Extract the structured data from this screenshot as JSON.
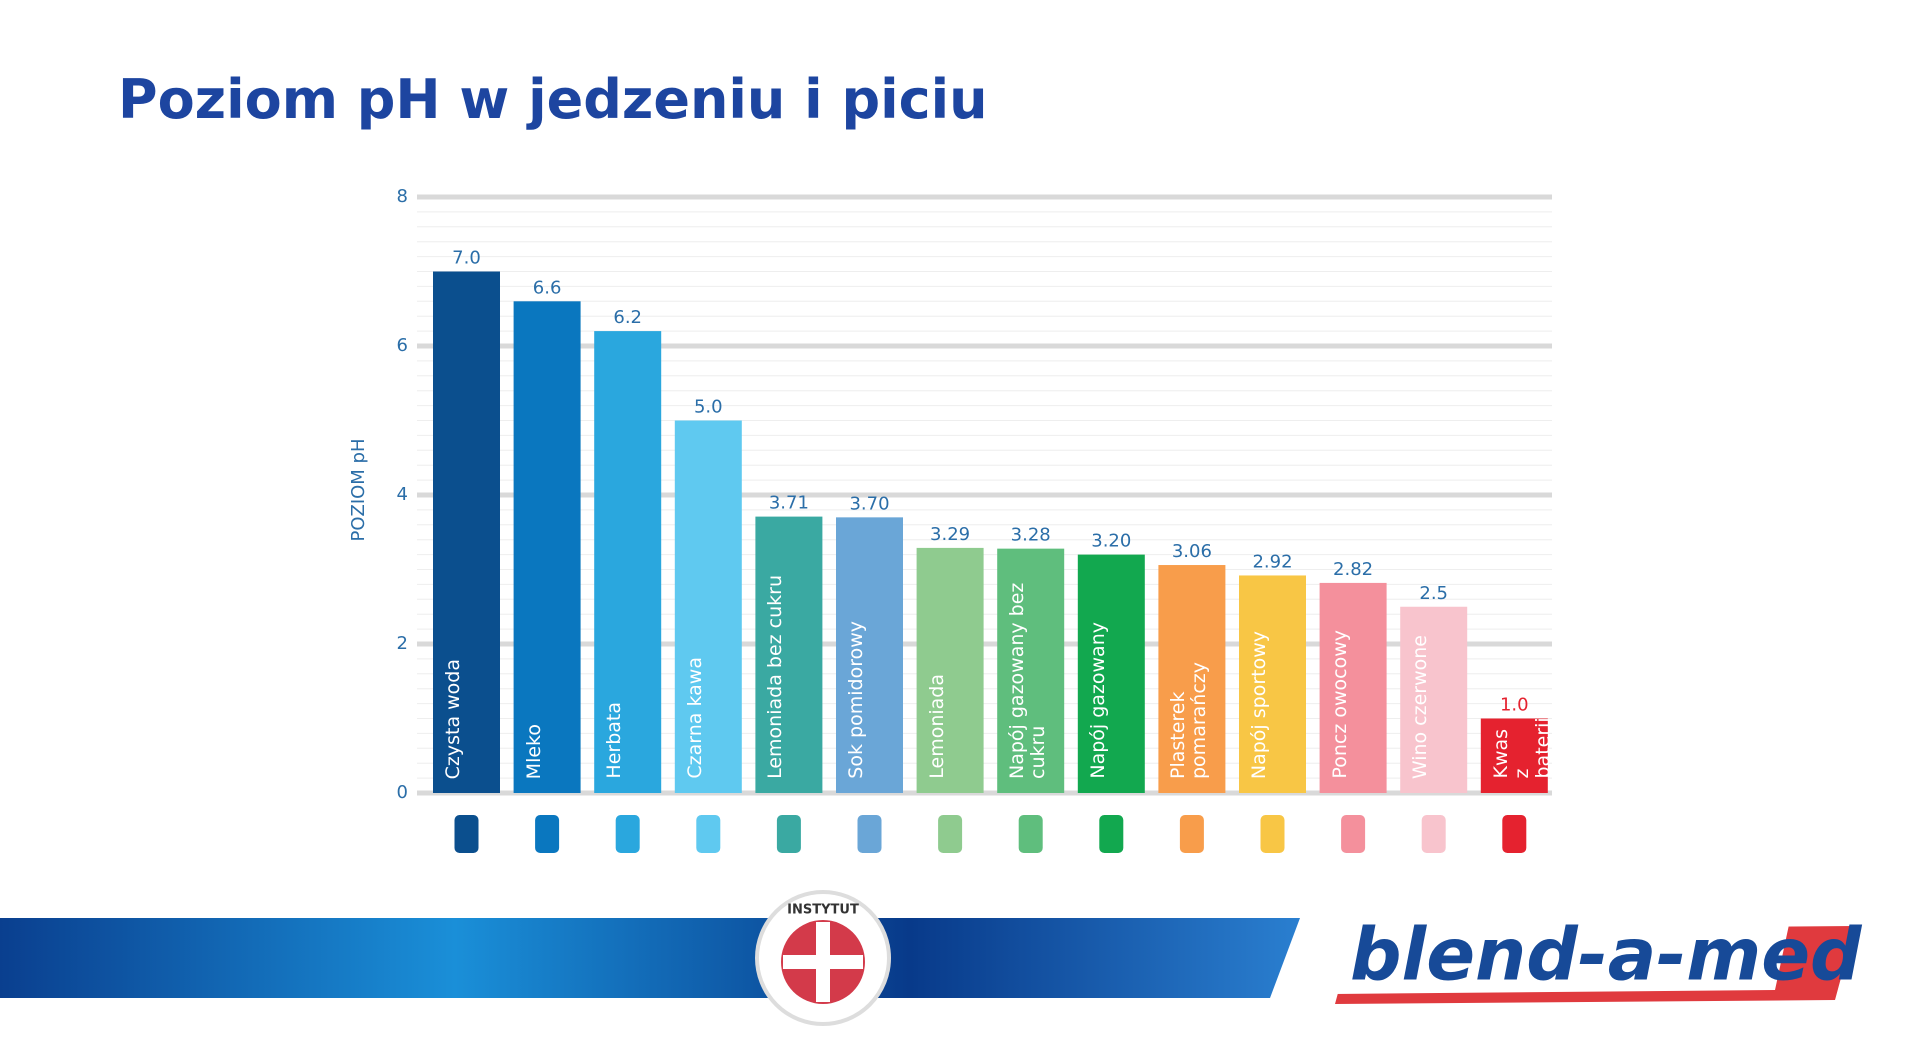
{
  "chart_data": {
    "type": "bar",
    "title": "Poziom pH w jedzeniu i piciu",
    "y_label": "POZIOM pH",
    "categories": [
      "Czysta woda",
      "Mleko",
      "Herbata",
      "Czarna kawa",
      "Lemoniada bez cukru",
      "Sok pomidorowy",
      "Lemoniada",
      "Napój gazowany bez cukru",
      "Napój gazowany",
      "Plasterek pomarańczy",
      "Napój sportowy",
      "Poncz owocowy",
      "Wino czerwone",
      "Kwas z baterii"
    ],
    "values": [
      7.0,
      6.6,
      6.2,
      5.0,
      3.71,
      3.7,
      3.29,
      3.28,
      3.2,
      3.06,
      2.92,
      2.82,
      2.5,
      1.0
    ],
    "value_labels": [
      "7.0",
      "6.6",
      "6.2",
      "5.0",
      "3.71",
      "3.70",
      "3.29",
      "3.28",
      "3.20",
      "3.06",
      "2.92",
      "2.82",
      "2.5",
      "1.0"
    ],
    "colors": [
      "#0b4f8e",
      "#0a77bf",
      "#2aa7de",
      "#5fc9f0",
      "#3aa9a2",
      "#6aa6d7",
      "#8fcb8f",
      "#5fbe7d",
      "#12a84f",
      "#f89d4b",
      "#f8c645",
      "#f4909c",
      "#f8c4cd",
      "#e5222f"
    ],
    "ylim": [
      0,
      8
    ],
    "yticks": [
      0,
      2,
      4,
      6,
      8
    ],
    "grid": true
  },
  "footer": {
    "badge_text": "INSTYTUT",
    "logo_text": "blend-a-med"
  }
}
